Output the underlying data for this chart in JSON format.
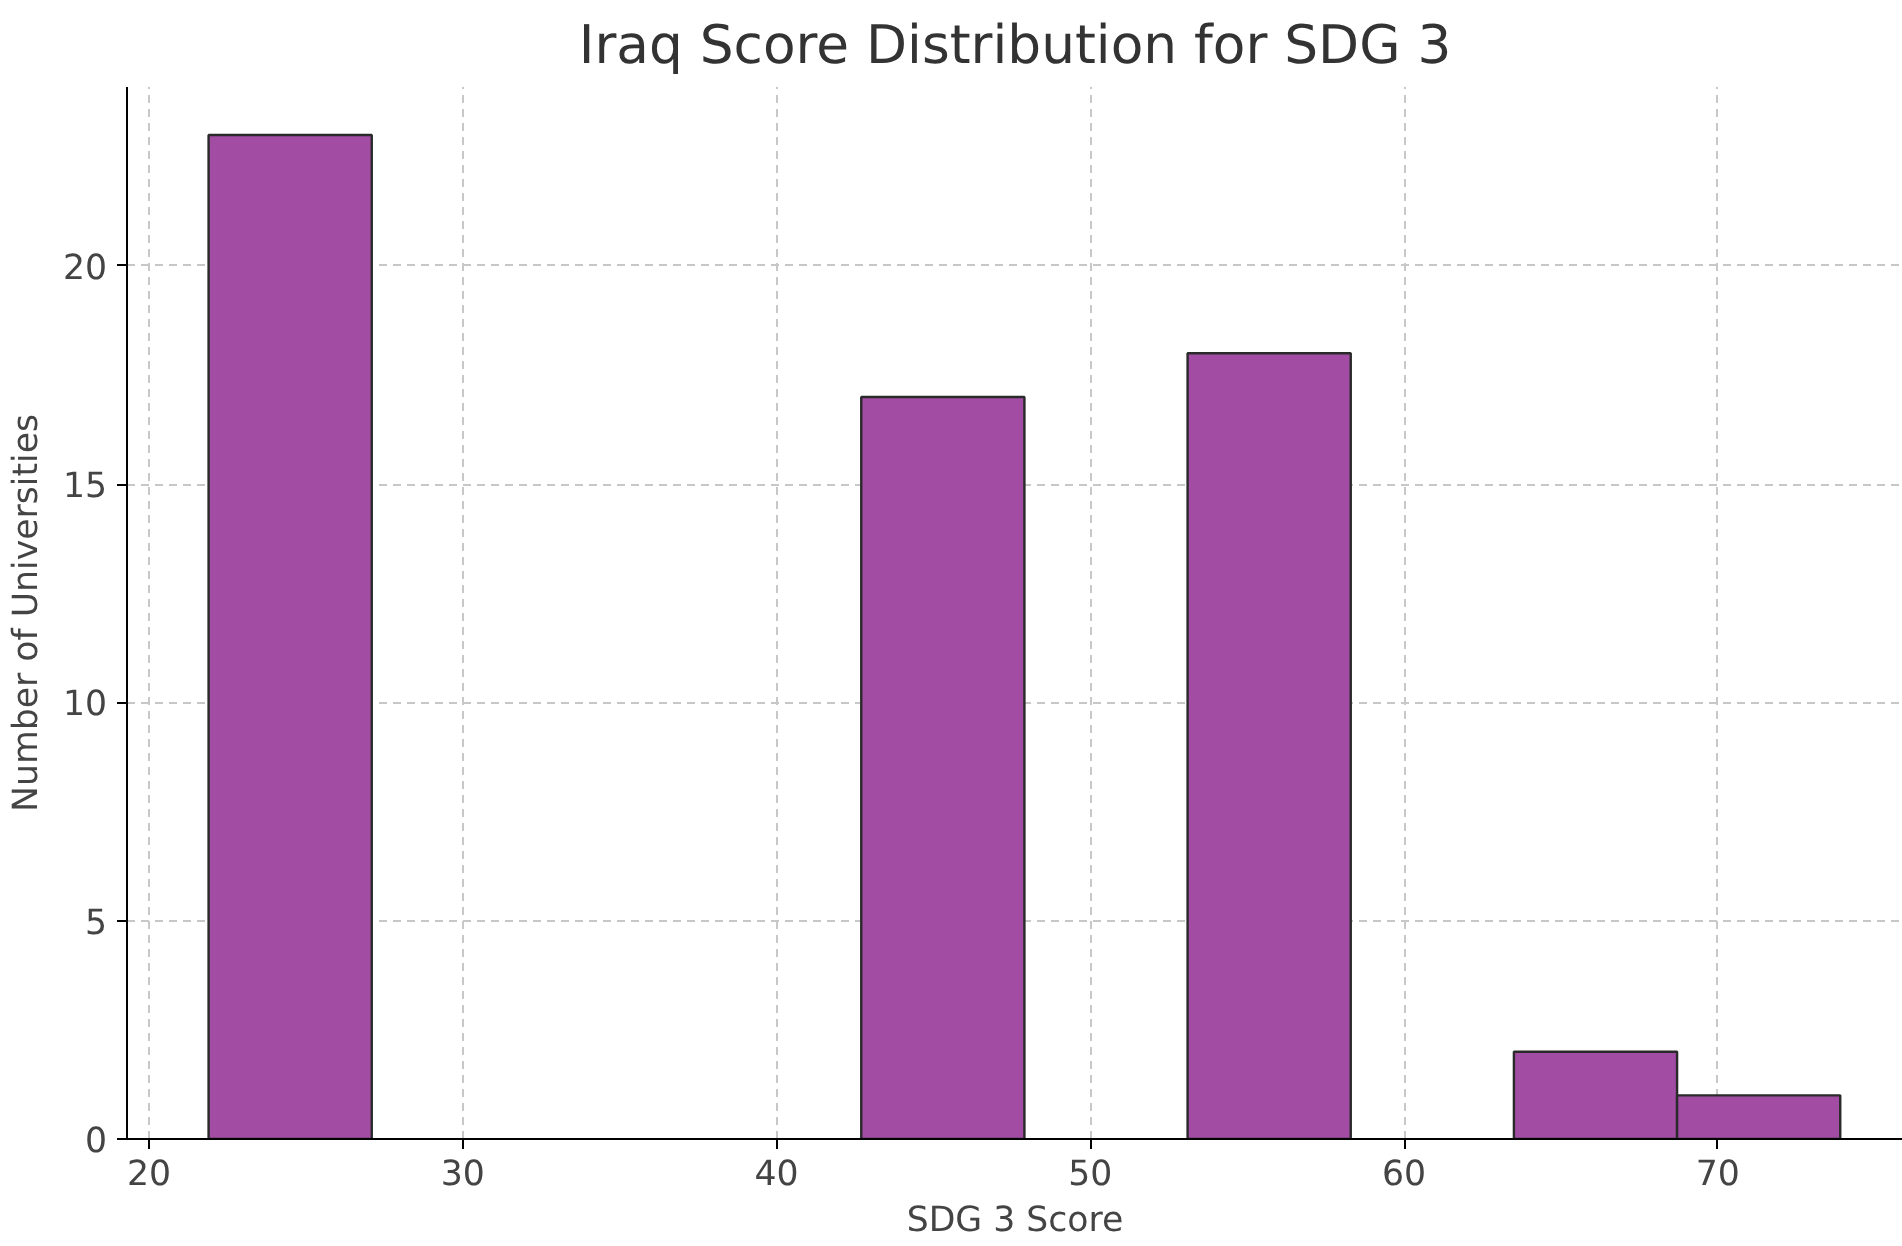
{
  "chart_data": {
    "type": "histogram",
    "title": "Iraq Score Distribution for SDG 3",
    "xlabel": "SDG 3 Score",
    "ylabel": "Number of Universities",
    "bins": [
      21.9,
      27.1,
      32.3,
      37.5,
      42.7,
      47.9,
      53.1,
      58.3,
      63.5,
      68.7,
      73.9
    ],
    "values": [
      23,
      0,
      0,
      0,
      17,
      0,
      18,
      0,
      2,
      1
    ],
    "color": "#a24ca3",
    "xlim": [
      19.3,
      75.9
    ],
    "ylim": [
      0,
      24.1
    ],
    "xticks": [
      20,
      30,
      40,
      50,
      60,
      70
    ],
    "yticks": [
      0,
      5,
      10,
      15,
      20
    ],
    "grid": true
  }
}
